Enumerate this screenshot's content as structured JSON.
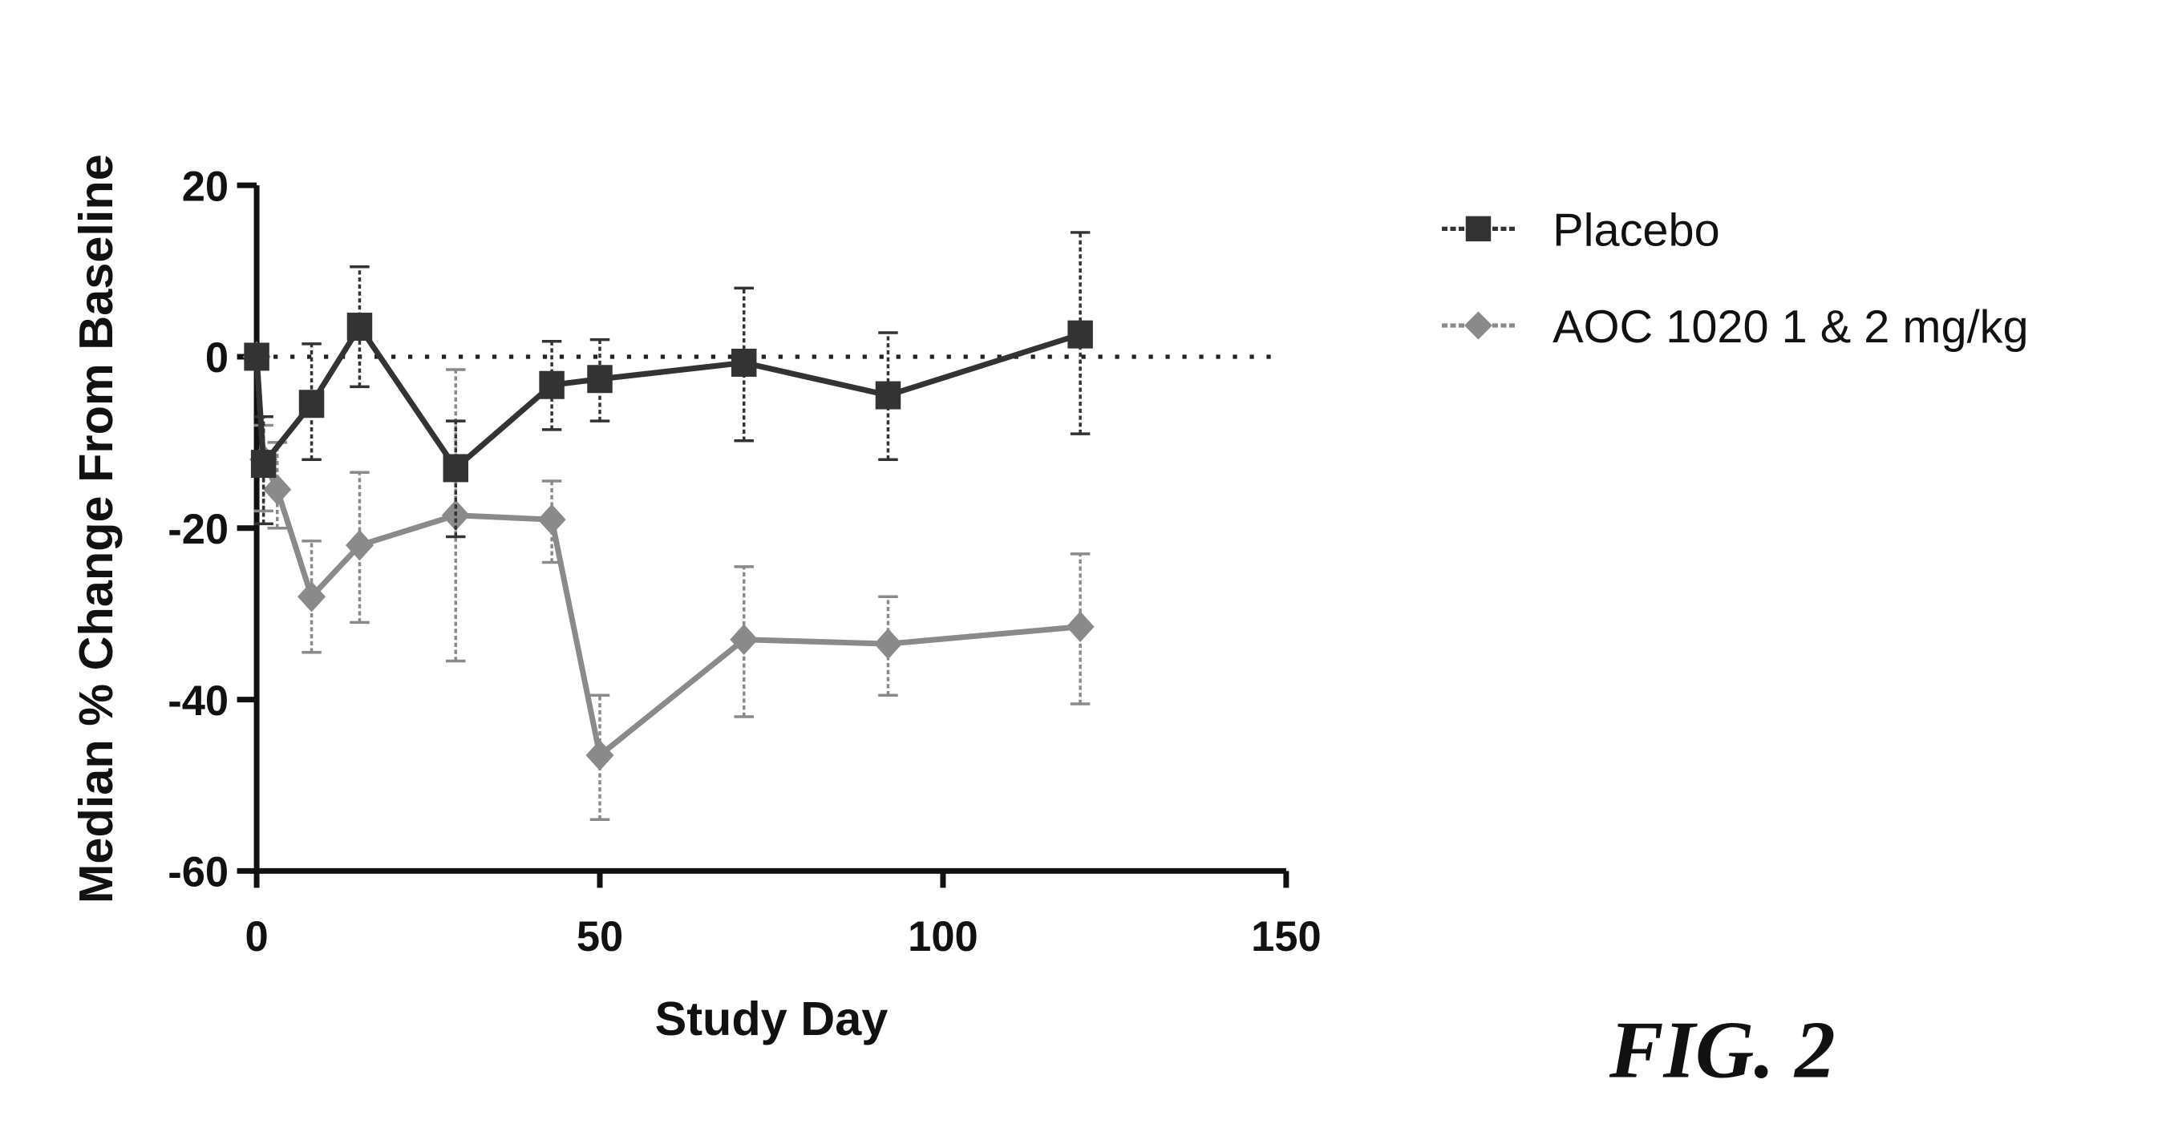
{
  "chart_data": {
    "type": "line",
    "title": "",
    "xlabel": "Study Day",
    "ylabel": "Median % Change From Baseline",
    "xlim": [
      0,
      150
    ],
    "ylim": [
      -60,
      20
    ],
    "xticks": [
      0,
      50,
      100,
      150
    ],
    "yticks": [
      20,
      0,
      -20,
      -40,
      -60
    ],
    "reference_line": {
      "y": 0,
      "style": "dotted"
    },
    "legend_position": "top-right",
    "series": [
      {
        "name": "Placebo",
        "color": "#333333",
        "x": [
          0,
          1,
          8,
          15,
          29,
          43,
          50,
          71,
          92,
          120
        ],
        "y": [
          0,
          -12.5,
          -5.5,
          3.5,
          -13,
          -3.3,
          -2.6,
          -0.7,
          -4.5,
          2.6
        ],
        "err_low": [
          0,
          -19.5,
          -12,
          -3.5,
          -21,
          -8.5,
          -7.5,
          -9.8,
          -12,
          -9
        ],
        "err_high": [
          0,
          -7,
          1.5,
          10.5,
          -7.5,
          1.8,
          2,
          8,
          2.8,
          14.5
        ]
      },
      {
        "name": "AOC 1020 1 & 2 mg/kg",
        "color": "#8a8a8a",
        "x": [
          0,
          1,
          3,
          8,
          15,
          29,
          43,
          50,
          71,
          92,
          120
        ],
        "y": [
          0,
          -12,
          -15.5,
          -28,
          -22,
          -18.5,
          -19,
          -46.5,
          -33,
          -33.5,
          -31.5
        ],
        "err_low": [
          0,
          -18,
          -20,
          -34.5,
          -31,
          -35.5,
          -24,
          -54,
          -42,
          -39.5,
          -40.5
        ],
        "err_high": [
          0,
          -8,
          -10,
          -21.5,
          -13.5,
          -1.5,
          -14.5,
          -39.5,
          -24.5,
          -28,
          -23
        ]
      }
    ]
  },
  "figure_label": "FIG. 2"
}
